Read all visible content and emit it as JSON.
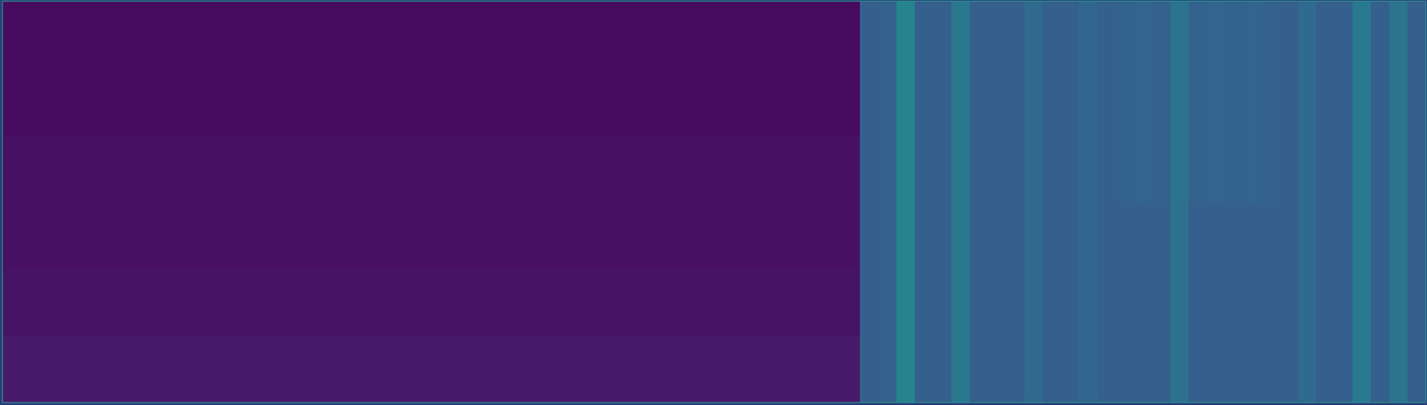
{
  "chart_data": {
    "type": "heatmap",
    "tick_labels": false,
    "zlim": [
      0,
      1
    ],
    "values": [
      [
        0.03,
        0.03,
        0.03,
        0.03,
        0.03,
        0.03,
        0.03,
        0.03,
        0.03,
        0.03,
        0.03,
        0.03,
        0.03,
        0.03,
        0.03,
        0.03,
        0.03,
        0.03,
        0.03,
        0.03,
        0.03,
        0.03,
        0.03,
        0.03,
        0.03,
        0.03,
        0.03,
        0.03,
        0.03,
        0.03,
        0.03,
        0.03,
        0.03,
        0.03,
        0.03,
        0.03,
        0.03,
        0.03,
        0.03,
        0.03,
        0.03,
        0.03,
        0.03,
        0.03,
        0.03,
        0.03,
        0.03,
        0.3,
        0.31,
        0.45,
        0.3,
        0.3,
        0.4,
        0.3,
        0.3,
        0.3,
        0.34,
        0.3,
        0.3,
        0.33,
        0.3,
        0.31,
        0.32,
        0.31,
        0.38,
        0.31,
        0.32,
        0.31,
        0.32,
        0.31,
        0.3,
        0.34,
        0.3,
        0.3,
        0.41,
        0.3,
        0.38,
        0.3
      ],
      [
        0.03,
        0.03,
        0.03,
        0.03,
        0.03,
        0.03,
        0.03,
        0.03,
        0.03,
        0.03,
        0.03,
        0.03,
        0.03,
        0.03,
        0.03,
        0.03,
        0.03,
        0.03,
        0.03,
        0.03,
        0.03,
        0.03,
        0.03,
        0.03,
        0.03,
        0.03,
        0.03,
        0.03,
        0.03,
        0.03,
        0.03,
        0.03,
        0.03,
        0.03,
        0.03,
        0.03,
        0.03,
        0.03,
        0.03,
        0.03,
        0.03,
        0.03,
        0.03,
        0.03,
        0.03,
        0.03,
        0.03,
        0.3,
        0.31,
        0.45,
        0.3,
        0.3,
        0.4,
        0.3,
        0.3,
        0.3,
        0.34,
        0.3,
        0.3,
        0.33,
        0.3,
        0.31,
        0.32,
        0.31,
        0.38,
        0.31,
        0.32,
        0.31,
        0.32,
        0.31,
        0.3,
        0.34,
        0.3,
        0.3,
        0.41,
        0.3,
        0.38,
        0.3
      ],
      [
        0.04,
        0.04,
        0.04,
        0.04,
        0.04,
        0.04,
        0.04,
        0.04,
        0.04,
        0.04,
        0.04,
        0.04,
        0.04,
        0.04,
        0.04,
        0.04,
        0.04,
        0.04,
        0.04,
        0.04,
        0.04,
        0.04,
        0.04,
        0.04,
        0.04,
        0.04,
        0.04,
        0.04,
        0.04,
        0.04,
        0.04,
        0.04,
        0.04,
        0.04,
        0.04,
        0.04,
        0.04,
        0.04,
        0.04,
        0.04,
        0.04,
        0.04,
        0.04,
        0.04,
        0.04,
        0.04,
        0.04,
        0.3,
        0.31,
        0.45,
        0.3,
        0.3,
        0.4,
        0.3,
        0.3,
        0.3,
        0.34,
        0.3,
        0.3,
        0.33,
        0.3,
        0.31,
        0.32,
        0.31,
        0.38,
        0.31,
        0.32,
        0.31,
        0.32,
        0.31,
        0.3,
        0.34,
        0.3,
        0.3,
        0.41,
        0.3,
        0.38,
        0.3
      ],
      [
        0.04,
        0.04,
        0.04,
        0.04,
        0.04,
        0.04,
        0.04,
        0.04,
        0.04,
        0.04,
        0.04,
        0.04,
        0.04,
        0.04,
        0.04,
        0.04,
        0.04,
        0.04,
        0.04,
        0.04,
        0.04,
        0.04,
        0.04,
        0.04,
        0.04,
        0.04,
        0.04,
        0.04,
        0.04,
        0.04,
        0.04,
        0.04,
        0.04,
        0.04,
        0.04,
        0.04,
        0.04,
        0.04,
        0.04,
        0.04,
        0.04,
        0.04,
        0.04,
        0.04,
        0.04,
        0.04,
        0.04,
        0.3,
        0.31,
        0.45,
        0.3,
        0.3,
        0.4,
        0.3,
        0.3,
        0.3,
        0.34,
        0.3,
        0.3,
        0.33,
        0.3,
        0.3,
        0.3,
        0.3,
        0.37,
        0.3,
        0.3,
        0.3,
        0.3,
        0.3,
        0.3,
        0.34,
        0.3,
        0.3,
        0.41,
        0.3,
        0.38,
        0.3
      ],
      [
        0.05,
        0.05,
        0.05,
        0.05,
        0.05,
        0.05,
        0.05,
        0.05,
        0.05,
        0.05,
        0.05,
        0.05,
        0.05,
        0.05,
        0.05,
        0.05,
        0.05,
        0.05,
        0.05,
        0.05,
        0.05,
        0.05,
        0.05,
        0.05,
        0.05,
        0.05,
        0.05,
        0.05,
        0.05,
        0.05,
        0.05,
        0.05,
        0.05,
        0.05,
        0.05,
        0.05,
        0.05,
        0.05,
        0.05,
        0.05,
        0.05,
        0.05,
        0.05,
        0.05,
        0.05,
        0.05,
        0.05,
        0.3,
        0.31,
        0.45,
        0.3,
        0.3,
        0.4,
        0.3,
        0.3,
        0.3,
        0.34,
        0.3,
        0.3,
        0.33,
        0.3,
        0.3,
        0.3,
        0.3,
        0.37,
        0.3,
        0.3,
        0.3,
        0.3,
        0.3,
        0.3,
        0.34,
        0.3,
        0.3,
        0.41,
        0.3,
        0.38,
        0.3
      ],
      [
        0.07,
        0.07,
        0.07,
        0.07,
        0.07,
        0.07,
        0.07,
        0.07,
        0.07,
        0.07,
        0.07,
        0.07,
        0.07,
        0.07,
        0.07,
        0.07,
        0.07,
        0.07,
        0.07,
        0.07,
        0.07,
        0.07,
        0.07,
        0.07,
        0.07,
        0.07,
        0.07,
        0.07,
        0.07,
        0.07,
        0.07,
        0.07,
        0.07,
        0.07,
        0.07,
        0.07,
        0.07,
        0.07,
        0.07,
        0.07,
        0.07,
        0.07,
        0.07,
        0.07,
        0.07,
        0.07,
        0.07,
        0.3,
        0.31,
        0.45,
        0.3,
        0.3,
        0.4,
        0.3,
        0.3,
        0.3,
        0.34,
        0.3,
        0.3,
        0.33,
        0.3,
        0.3,
        0.3,
        0.3,
        0.37,
        0.3,
        0.3,
        0.3,
        0.3,
        0.3,
        0.3,
        0.34,
        0.3,
        0.3,
        0.41,
        0.3,
        0.38,
        0.3
      ]
    ]
  }
}
